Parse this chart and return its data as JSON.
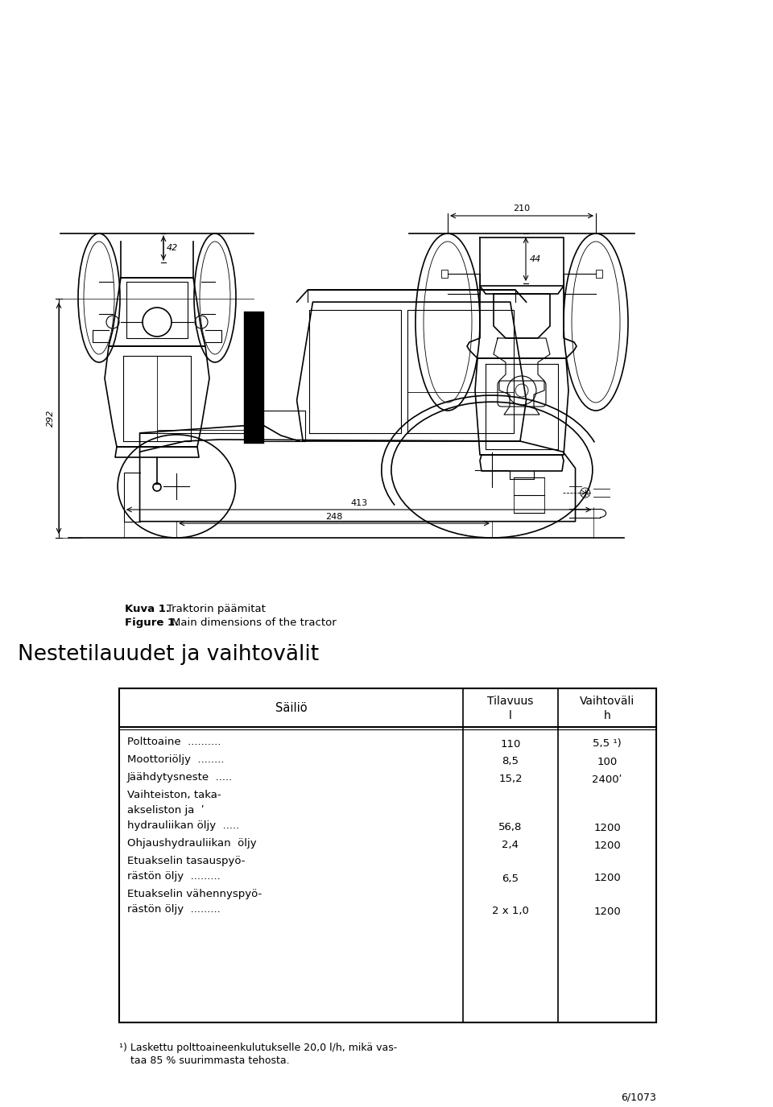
{
  "page_background": "#ffffff",
  "section_title": "Nestetilauudet ja vaihtovälit",
  "caption_bold1": "Kuva 1.",
  "caption_text1": "  Traktorin päämitat",
  "caption_bold2": "Figure 1.",
  "caption_text2": "  Main dimensions of the tractor",
  "table_header": [
    "Säiliö",
    "Tilavuus\nl",
    "Vaihtoväli\nh"
  ],
  "table_rows": [
    [
      "Polttoaine  ..........",
      "110",
      "5,5 ¹)"
    ],
    [
      "Moottoriöljy  ........",
      "8,5",
      "100"
    ],
    [
      "Jäähdytysneste  .....",
      "15,2",
      "2400ʹ"
    ],
    [
      "Vaihteiston, taka-\nakseliston ja\nhydrauliikan öljy  .....",
      "56,8",
      "1200"
    ],
    [
      "Ohjaushydrauliikan  öljy",
      "2,4",
      "1200"
    ],
    [
      "Etuakselin tasauspyö-\nrästön öljy  .........",
      "6,5",
      "1200"
    ],
    [
      "Etuakselin vähennyspyö-\nrästön öljy  .........",
      "2 x 1,0",
      "1200"
    ]
  ],
  "footnote": "¹) Laskettu polttoaineenkulutukselle 20,0 l/h, mikä vas-\n    taa 85 % suurimmasta tehosta.",
  "page_number": "6/1073",
  "dim_42": "42",
  "dim_44": "44",
  "dim_210": "210",
  "dim_292": "292",
  "dim_248": "248",
  "dim_413": "413"
}
